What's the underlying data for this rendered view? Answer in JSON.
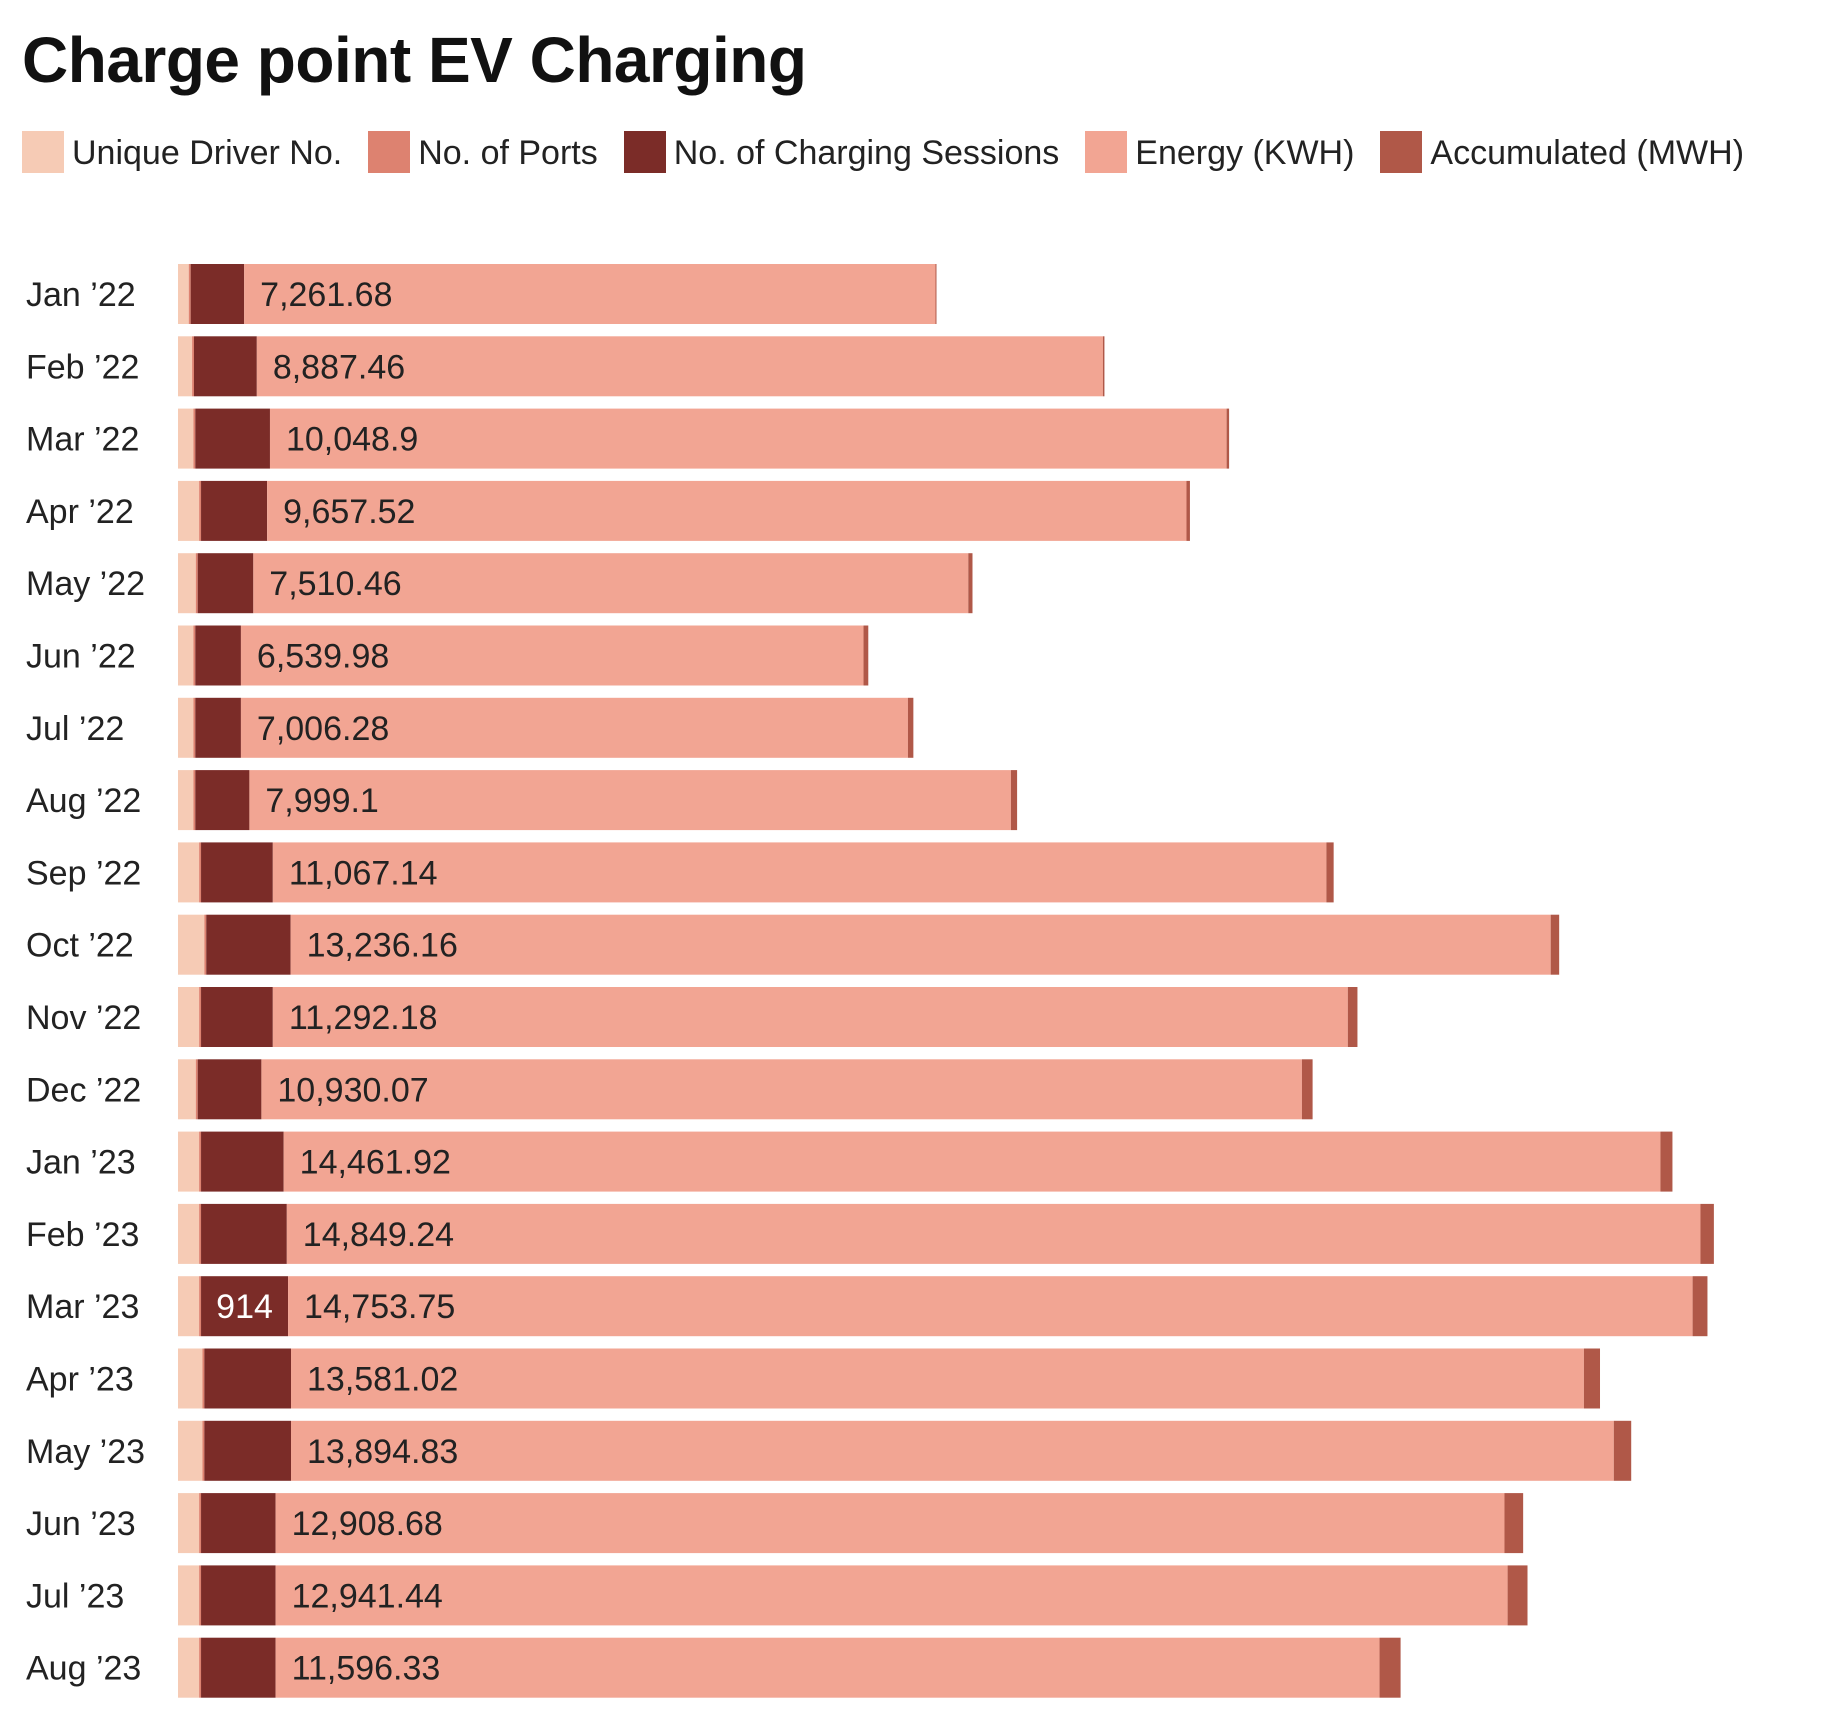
{
  "chart_data": {
    "type": "bar",
    "orientation": "horizontal",
    "stacked": true,
    "title": "Charge point EV Charging",
    "xlabel": "",
    "ylabel": "",
    "grid": false,
    "legend_position": "top",
    "categories": [
      "Jan ’22",
      "Feb ’22",
      "Mar ’22",
      "Apr ’22",
      "May ’22",
      "Jun ’22",
      "Jul ’22",
      "Aug ’22",
      "Sep ’22",
      "Oct ’22",
      "Nov ’22",
      "Dec ’22",
      "Jan ’23",
      "Feb ’23",
      "Mar ’23",
      "Apr ’23",
      "May ’23",
      "Jun ’23",
      "Jul ’23",
      "Aug ’23"
    ],
    "series": [
      {
        "name": "Unique Driver No.",
        "color": "#f6cbb5",
        "values": [
          113,
          148,
          162,
          222,
          187,
          162,
          162,
          162,
          222,
          277,
          222,
          187,
          222,
          222,
          222,
          257,
          257,
          222,
          222,
          222
        ]
      },
      {
        "name": "No. of Ports",
        "color": "#dd8270",
        "values": [
          20,
          20,
          20,
          20,
          20,
          20,
          20,
          20,
          20,
          20,
          20,
          20,
          20,
          20,
          20,
          20,
          20,
          20,
          20,
          20
        ]
      },
      {
        "name": "No. of Charging Sessions",
        "color": "#7b2c28",
        "values": [
          562,
          660,
          784,
          694,
          584,
          479,
          479,
          568,
          754,
          886,
          754,
          669,
          868,
          901,
          914,
          910,
          910,
          783,
          783,
          783
        ]
      },
      {
        "name": "Energy (KWH)",
        "color": "#f2a593",
        "values": [
          7261.68,
          8887.46,
          10048.9,
          9657.52,
          7510.46,
          6539.98,
          7006.28,
          7999.1,
          11067.14,
          13236.16,
          11292.18,
          10930.07,
          14461.92,
          14849.24,
          14753.75,
          13581.02,
          13894.83,
          12908.68,
          12941.44,
          11596.33
        ]
      },
      {
        "name": "Accumulated (MWH)",
        "color": "#b05848",
        "values": [
          7,
          16,
          26,
          36,
          44,
          50,
          57,
          65,
          76,
          89,
          101,
          112,
          126,
          141,
          156,
          169,
          183,
          196,
          209,
          221
        ]
      }
    ],
    "value_labels": {
      "Energy (KWH)": [
        "7,261.68",
        "8,887.46",
        "10,048.9",
        "9,657.52",
        "7,510.46",
        "6,539.98",
        "7,006.28",
        "7,999.1",
        "11,067.14",
        "13,236.16",
        "11,292.18",
        "10,930.07",
        "14,461.92",
        "14,849.24",
        "14,753.75",
        "13,581.02",
        "13,894.83",
        "12,908.68",
        "12,941.44",
        "11,596.33"
      ],
      "No. of Charging Sessions": [
        "",
        "",
        "",
        "",
        "",
        "",
        "",
        "",
        "",
        "",
        "",
        "",
        "",
        "",
        "914",
        "",
        "",
        "",
        "",
        ""
      ]
    }
  }
}
